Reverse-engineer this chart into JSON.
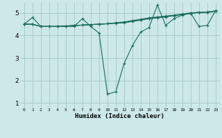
{
  "xlabel": "Humidex (Indice chaleur)",
  "ylabel": "",
  "xlim": [
    -0.5,
    23.5
  ],
  "ylim": [
    0.8,
    5.45
  ],
  "xtick_labels": [
    "0",
    "1",
    "2",
    "3",
    "4",
    "5",
    "6",
    "7",
    "8",
    "9",
    "10",
    "11",
    "12",
    "13",
    "14",
    "15",
    "16",
    "17",
    "18",
    "19",
    "20",
    "21",
    "22",
    "23"
  ],
  "ytick_values": [
    1,
    2,
    3,
    4,
    5
  ],
  "background_color": "#cce8e8",
  "grid_color": "#aacccc",
  "line_color": "#1a6b5e",
  "series": [
    [
      4.5,
      4.8,
      4.4,
      4.4,
      4.4,
      4.4,
      4.4,
      4.75,
      4.4,
      4.1,
      1.4,
      1.5,
      2.75,
      3.55,
      4.15,
      4.35,
      5.35,
      4.45,
      4.75,
      4.9,
      5.0,
      4.4,
      4.45,
      5.1
    ],
    [
      4.5,
      4.5,
      4.4,
      4.4,
      4.4,
      4.42,
      4.44,
      4.46,
      4.48,
      4.5,
      4.52,
      4.54,
      4.56,
      4.62,
      4.68,
      4.74,
      4.78,
      4.82,
      4.88,
      4.92,
      4.97,
      5.02,
      5.02,
      5.07
    ],
    [
      4.5,
      4.5,
      4.4,
      4.4,
      4.4,
      4.42,
      4.44,
      4.46,
      4.48,
      4.5,
      4.52,
      4.56,
      4.58,
      4.64,
      4.7,
      4.76,
      4.8,
      4.84,
      4.88,
      4.93,
      4.98,
      5.02,
      5.03,
      5.08
    ],
    [
      4.5,
      4.5,
      4.4,
      4.4,
      4.4,
      4.42,
      4.44,
      4.46,
      4.48,
      4.5,
      4.52,
      4.56,
      4.6,
      4.66,
      4.72,
      4.78,
      4.82,
      4.86,
      4.9,
      4.95,
      5.0,
      5.03,
      5.04,
      5.09
    ]
  ]
}
